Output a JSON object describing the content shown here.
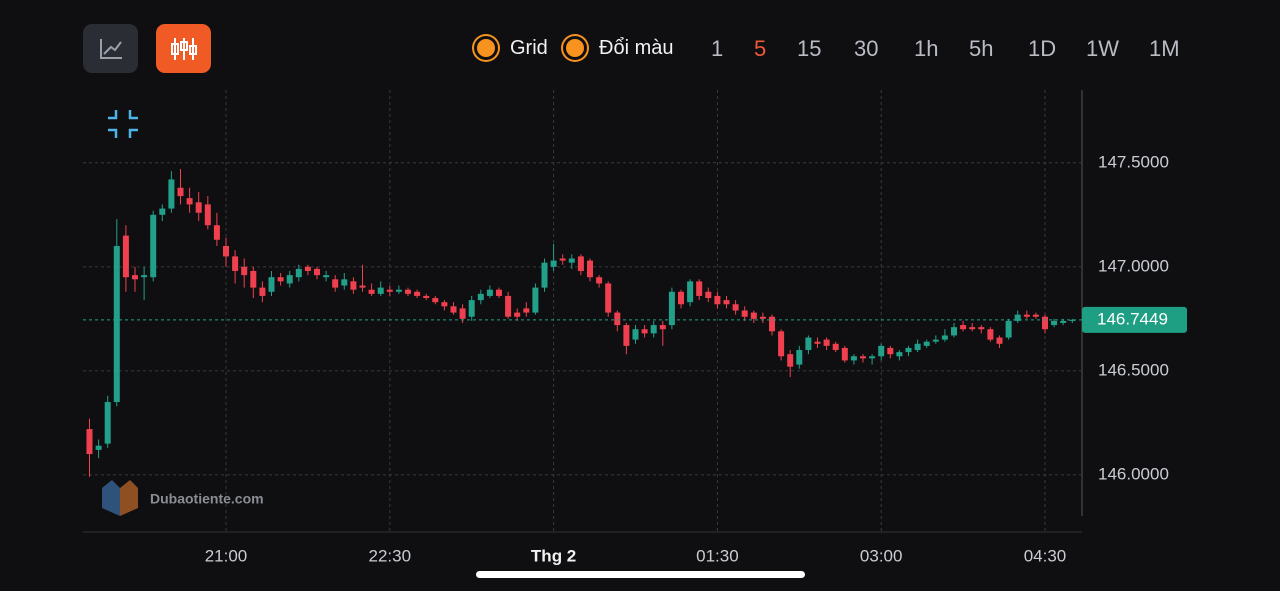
{
  "toolbar": {
    "toggles": [
      "Grid",
      "Đổi màu"
    ],
    "timeframes": [
      "1",
      "5",
      "15",
      "30",
      "1h",
      "5h",
      "1D",
      "1W",
      "1M"
    ]
  },
  "watermark": "Dubaotiente.com",
  "chart_data": {
    "type": "candlestick",
    "categories": [
      null,
      null,
      null,
      null,
      null,
      null,
      null,
      null,
      null,
      null,
      null,
      null,
      null,
      null,
      null,
      "21:00",
      null,
      null,
      null,
      null,
      null,
      null,
      null,
      null,
      null,
      null,
      null,
      null,
      null,
      null,
      null,
      null,
      null,
      "22:30",
      null,
      null,
      null,
      null,
      null,
      null,
      null,
      null,
      null,
      null,
      null,
      null,
      null,
      null,
      null,
      null,
      null,
      "Thg 2",
      null,
      null,
      null,
      null,
      null,
      null,
      null,
      null,
      null,
      null,
      null,
      null,
      null,
      null,
      null,
      null,
      null,
      "01:30",
      null,
      null,
      null,
      null,
      null,
      null,
      null,
      null,
      null,
      null,
      null,
      null,
      null,
      null,
      null,
      null,
      null,
      "03:00",
      null,
      null,
      null,
      null,
      null,
      null,
      null,
      null,
      null,
      null,
      null,
      null,
      null,
      null,
      null,
      null,
      null,
      "04:30",
      null,
      null,
      null
    ],
    "open": [
      146.22,
      146.12,
      146.15,
      146.35,
      147.15,
      146.96,
      146.95,
      146.95,
      147.25,
      147.28,
      147.38,
      147.33,
      147.31,
      147.3,
      147.2,
      147.1,
      147.05,
      147.0,
      146.98,
      146.9,
      146.88,
      146.95,
      146.92,
      146.95,
      147.0,
      146.99,
      146.95,
      146.94,
      146.91,
      146.93,
      146.91,
      146.89,
      146.87,
      146.89,
      146.88,
      146.89,
      146.88,
      146.86,
      146.85,
      146.83,
      146.81,
      146.8,
      146.76,
      146.84,
      146.86,
      146.89,
      146.86,
      146.78,
      146.8,
      146.78,
      146.9,
      147.0,
      147.04,
      147.02,
      147.05,
      147.03,
      146.95,
      146.92,
      146.78,
      146.72,
      146.65,
      146.7,
      146.68,
      146.72,
      146.72,
      146.88,
      146.83,
      146.93,
      146.88,
      146.86,
      146.84,
      146.82,
      146.79,
      146.78,
      146.76,
      146.76,
      146.69,
      146.58,
      146.53,
      146.6,
      146.64,
      146.65,
      146.63,
      146.61,
      146.55,
      146.57,
      146.56,
      146.57,
      146.61,
      146.57,
      146.59,
      146.6,
      146.62,
      146.64,
      146.65,
      146.67,
      146.72,
      146.71,
      146.71,
      146.7,
      146.66,
      146.66,
      146.74,
      146.77,
      146.77,
      146.76,
      146.72,
      146.73,
      146.74
    ],
    "high": [
      146.27,
      146.17,
      146.38,
      147.23,
      147.2,
      147.0,
      147.0,
      147.27,
      147.3,
      147.46,
      147.47,
      147.38,
      147.36,
      147.34,
      147.26,
      147.14,
      147.08,
      147.04,
      147.0,
      146.93,
      146.98,
      146.97,
      146.98,
      147.01,
      147.01,
      147.0,
      146.98,
      146.96,
      146.97,
      146.95,
      147.01,
      146.92,
      146.93,
      146.91,
      146.91,
      146.9,
      146.89,
      146.87,
      146.86,
      146.84,
      146.83,
      146.82,
      146.86,
      146.89,
      146.91,
      146.9,
      146.88,
      146.8,
      146.83,
      146.92,
      147.04,
      147.11,
      147.06,
      147.06,
      147.06,
      147.04,
      146.96,
      146.93,
      146.79,
      146.73,
      146.72,
      146.72,
      146.74,
      146.74,
      146.9,
      146.89,
      146.94,
      146.94,
      146.9,
      146.88,
      146.86,
      146.84,
      146.81,
      146.79,
      146.78,
      146.77,
      146.7,
      146.6,
      146.62,
      146.67,
      146.66,
      146.66,
      146.64,
      146.62,
      146.58,
      146.58,
      146.58,
      146.63,
      146.62,
      146.6,
      146.62,
      146.65,
      146.65,
      146.67,
      146.7,
      146.73,
      146.74,
      146.73,
      146.72,
      146.71,
      146.67,
      146.75,
      146.79,
      146.79,
      146.78,
      146.77,
      146.75,
      146.75,
      146.75
    ],
    "low": [
      145.99,
      146.08,
      146.13,
      146.33,
      146.88,
      146.88,
      146.84,
      146.93,
      147.22,
      147.26,
      147.3,
      147.26,
      147.22,
      147.18,
      147.1,
      147.0,
      146.92,
      146.9,
      146.85,
      146.83,
      146.86,
      146.91,
      146.9,
      146.93,
      146.96,
      146.94,
      146.93,
      146.88,
      146.89,
      146.87,
      146.88,
      146.86,
      146.86,
      146.86,
      146.87,
      146.86,
      146.85,
      146.84,
      146.82,
      146.79,
      146.77,
      146.73,
      146.74,
      146.82,
      146.85,
      146.85,
      146.75,
      146.74,
      146.76,
      146.77,
      146.88,
      146.98,
      147.01,
      146.99,
      146.96,
      146.93,
      146.9,
      146.76,
      146.69,
      146.58,
      146.63,
      146.66,
      146.66,
      146.62,
      146.7,
      146.8,
      146.81,
      146.84,
      146.83,
      146.8,
      146.8,
      146.77,
      146.74,
      146.73,
      146.73,
      146.67,
      146.55,
      146.47,
      146.51,
      146.58,
      146.61,
      146.6,
      146.59,
      146.54,
      146.53,
      146.54,
      146.53,
      146.55,
      146.56,
      146.55,
      146.57,
      146.59,
      146.61,
      146.63,
      146.64,
      146.66,
      146.69,
      146.69,
      146.68,
      146.64,
      146.61,
      146.65,
      146.73,
      146.75,
      146.75,
      146.68,
      146.71,
      146.72,
      146.73
    ],
    "close": [
      146.1,
      146.14,
      146.35,
      147.1,
      146.95,
      146.94,
      146.96,
      147.25,
      147.28,
      147.42,
      147.34,
      147.3,
      147.26,
      147.2,
      147.13,
      147.05,
      146.98,
      146.96,
      146.9,
      146.86,
      146.95,
      146.93,
      146.96,
      146.99,
      146.98,
      146.96,
      146.96,
      146.9,
      146.94,
      146.89,
      146.9,
      146.87,
      146.9,
      146.88,
      146.89,
      146.87,
      146.86,
      146.85,
      146.83,
      146.81,
      146.78,
      146.75,
      146.84,
      146.87,
      146.89,
      146.86,
      146.76,
      146.76,
      146.78,
      146.9,
      147.02,
      147.03,
      147.03,
      147.04,
      146.98,
      146.95,
      146.92,
      146.78,
      146.72,
      146.62,
      146.7,
      146.68,
      146.72,
      146.7,
      146.88,
      146.82,
      146.93,
      146.86,
      146.85,
      146.82,
      146.82,
      146.79,
      146.76,
      146.75,
      146.75,
      146.69,
      146.57,
      146.52,
      146.6,
      146.66,
      146.63,
      146.62,
      146.6,
      146.55,
      146.57,
      146.56,
      146.57,
      146.62,
      146.58,
      146.59,
      146.61,
      146.63,
      146.64,
      146.65,
      146.67,
      146.71,
      146.7,
      146.7,
      146.7,
      146.65,
      146.63,
      146.74,
      146.77,
      146.76,
      146.76,
      146.7,
      146.74,
      146.74,
      146.7449
    ],
    "up_color": "#22a08a",
    "down_color": "#f0404f",
    "last_price": 146.7449,
    "ylim": [
      145.73,
      147.85
    ],
    "yticks": [
      {
        "value": 146.0,
        "label": "146.0000"
      },
      {
        "value": 146.5,
        "label": "146.5000"
      },
      {
        "value": 147.0,
        "label": "147.0000"
      },
      {
        "value": 147.5,
        "label": "147.5000"
      }
    ],
    "grid": true
  }
}
